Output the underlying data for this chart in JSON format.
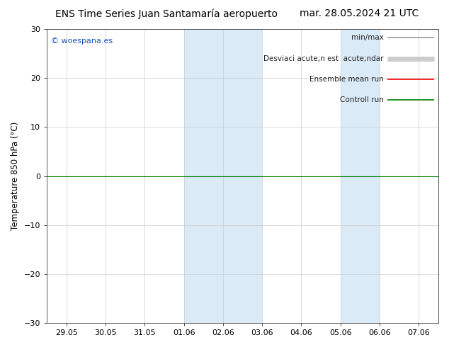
{
  "title_left": "ENS Time Series Juan Santamaría aeropuerto",
  "title_right": "mar. 28.05.2024 21 UTC",
  "ylabel": "Temperature 850 hPa (°C)",
  "ylim": [
    -30,
    30
  ],
  "yticks": [
    -30,
    -20,
    -10,
    0,
    10,
    20,
    30
  ],
  "xtick_labels": [
    "29.05",
    "30.05",
    "31.05",
    "01.06",
    "02.06",
    "03.06",
    "04.06",
    "05.06",
    "06.06",
    "07.06"
  ],
  "shaded_bands": [
    {
      "xstart": 3.0,
      "xend": 4.0
    },
    {
      "xstart": 4.0,
      "xend": 5.0
    },
    {
      "xstart": 7.0,
      "xend": 8.0
    }
  ],
  "shade_color": "#daeaf7",
  "shade_color2": "#cce0f0",
  "watermark": "© woespana.es",
  "legend_entries": [
    {
      "label": "min/max",
      "color": "#999999",
      "lw": 1.2
    },
    {
      "label": "Desviaci acute;n est  acute;ndar",
      "color": "#cccccc",
      "lw": 5
    },
    {
      "label": "Ensemble mean run",
      "color": "red",
      "lw": 1.2
    },
    {
      "label": "Controll run",
      "color": "green",
      "lw": 1.2
    }
  ],
  "zero_line_color": "green",
  "zero_line_lw": 0.8,
  "background_color": "#ffffff",
  "plot_bg_color": "#ffffff",
  "title_fontsize": 10,
  "label_fontsize": 8.5,
  "tick_fontsize": 8,
  "legend_fontsize": 7.5
}
